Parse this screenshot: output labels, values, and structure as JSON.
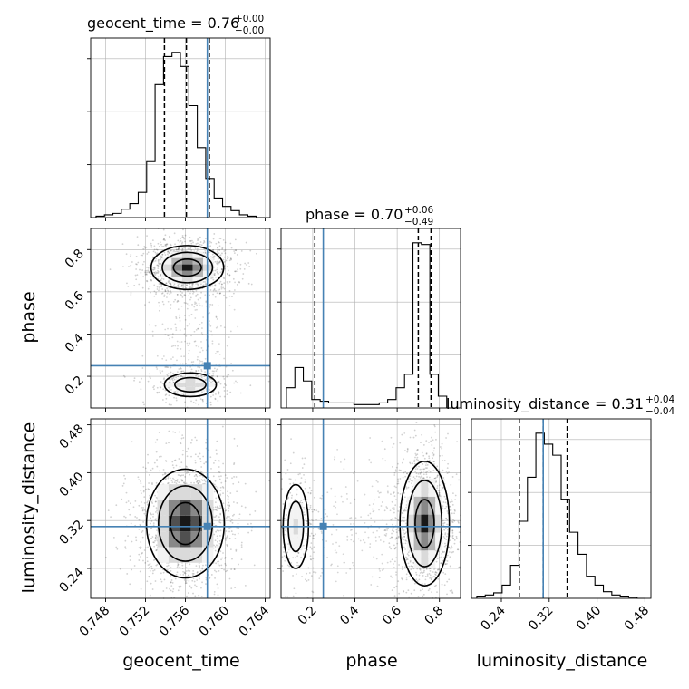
{
  "chart_data": {
    "type": "corner",
    "parameters": [
      "geocent_time",
      "phase",
      "luminosity_distance"
    ],
    "axis_labels": [
      "geocent_time",
      "phase",
      "luminosity_distance"
    ],
    "ranges": [
      [
        0.7465,
        0.7645
      ],
      [
        0.05,
        0.9
      ],
      [
        0.19,
        0.49
      ]
    ],
    "ticks": [
      [
        0.748,
        0.752,
        0.756,
        0.76,
        0.764
      ],
      [
        0.2,
        0.4,
        0.6,
        0.8
      ],
      [
        0.24,
        0.32,
        0.4,
        0.48
      ]
    ],
    "tick_labels": [
      [
        "0.748",
        "0.752",
        "0.756",
        "0.760",
        "0.764"
      ],
      [
        "0.2",
        "0.4",
        "0.6",
        "0.8"
      ],
      [
        "0.24",
        "0.32",
        "0.40",
        "0.48"
      ]
    ],
    "truth": [
      0.7582,
      0.25,
      0.31
    ],
    "truth_color": "#4682b4",
    "titles": [
      {
        "main": "geocent_time = 0.76",
        "plus": "+0.00",
        "minus": "−0.00"
      },
      {
        "main": "phase = 0.70",
        "plus": "+0.06",
        "minus": "−0.49"
      },
      {
        "main": "luminosity_distance = 0.31",
        "plus": "+0.04",
        "minus": "−0.04"
      }
    ],
    "quantiles": [
      [
        0.7539,
        0.7561,
        0.7584
      ],
      [
        0.21,
        0.7,
        0.76
      ],
      [
        0.27,
        0.31,
        0.35
      ]
    ],
    "histograms": [
      {
        "bins": 20,
        "counts": [
          1,
          2,
          3,
          6,
          10,
          18,
          40,
          95,
          115,
          118,
          108,
          80,
          50,
          28,
          14,
          8,
          5,
          2,
          1,
          0
        ]
      },
      {
        "bins": 20,
        "counts": [
          12,
          24,
          16,
          5,
          4,
          3,
          3,
          3,
          2,
          2,
          2,
          3,
          5,
          12,
          20,
          98,
          97,
          20,
          7,
          0
        ]
      },
      {
        "bins": 20,
        "counts": [
          2,
          3,
          5,
          12,
          30,
          70,
          110,
          150,
          140,
          130,
          90,
          60,
          40,
          20,
          12,
          6,
          3,
          2,
          1,
          0
        ]
      }
    ],
    "density_pairs": [
      {
        "x": "geocent_time",
        "y": "phase",
        "modes": [
          {
            "cx": 0.7562,
            "cy": 0.715,
            "sx": 0.0014,
            "sy": 0.04,
            "w": 0.78
          },
          {
            "cx": 0.7565,
            "cy": 0.16,
            "sx": 0.0013,
            "sy": 0.028,
            "w": 0.22
          }
        ]
      },
      {
        "x": "geocent_time",
        "y": "luminosity_distance",
        "modes": [
          {
            "cx": 0.756,
            "cy": 0.315,
            "sx": 0.0015,
            "sy": 0.035,
            "w": 1.0
          }
        ]
      },
      {
        "x": "phase",
        "y": "luminosity_distance",
        "modes": [
          {
            "cx": 0.73,
            "cy": 0.315,
            "sx": 0.045,
            "sy": 0.04,
            "w": 0.8
          },
          {
            "cx": 0.12,
            "cy": 0.31,
            "sx": 0.03,
            "sy": 0.035,
            "w": 0.2
          }
        ]
      }
    ],
    "grid": true,
    "colors": {
      "hist": "#000000",
      "truth": "#4682b4",
      "quantile": "#000000",
      "grid": "#b0b0b0"
    }
  }
}
